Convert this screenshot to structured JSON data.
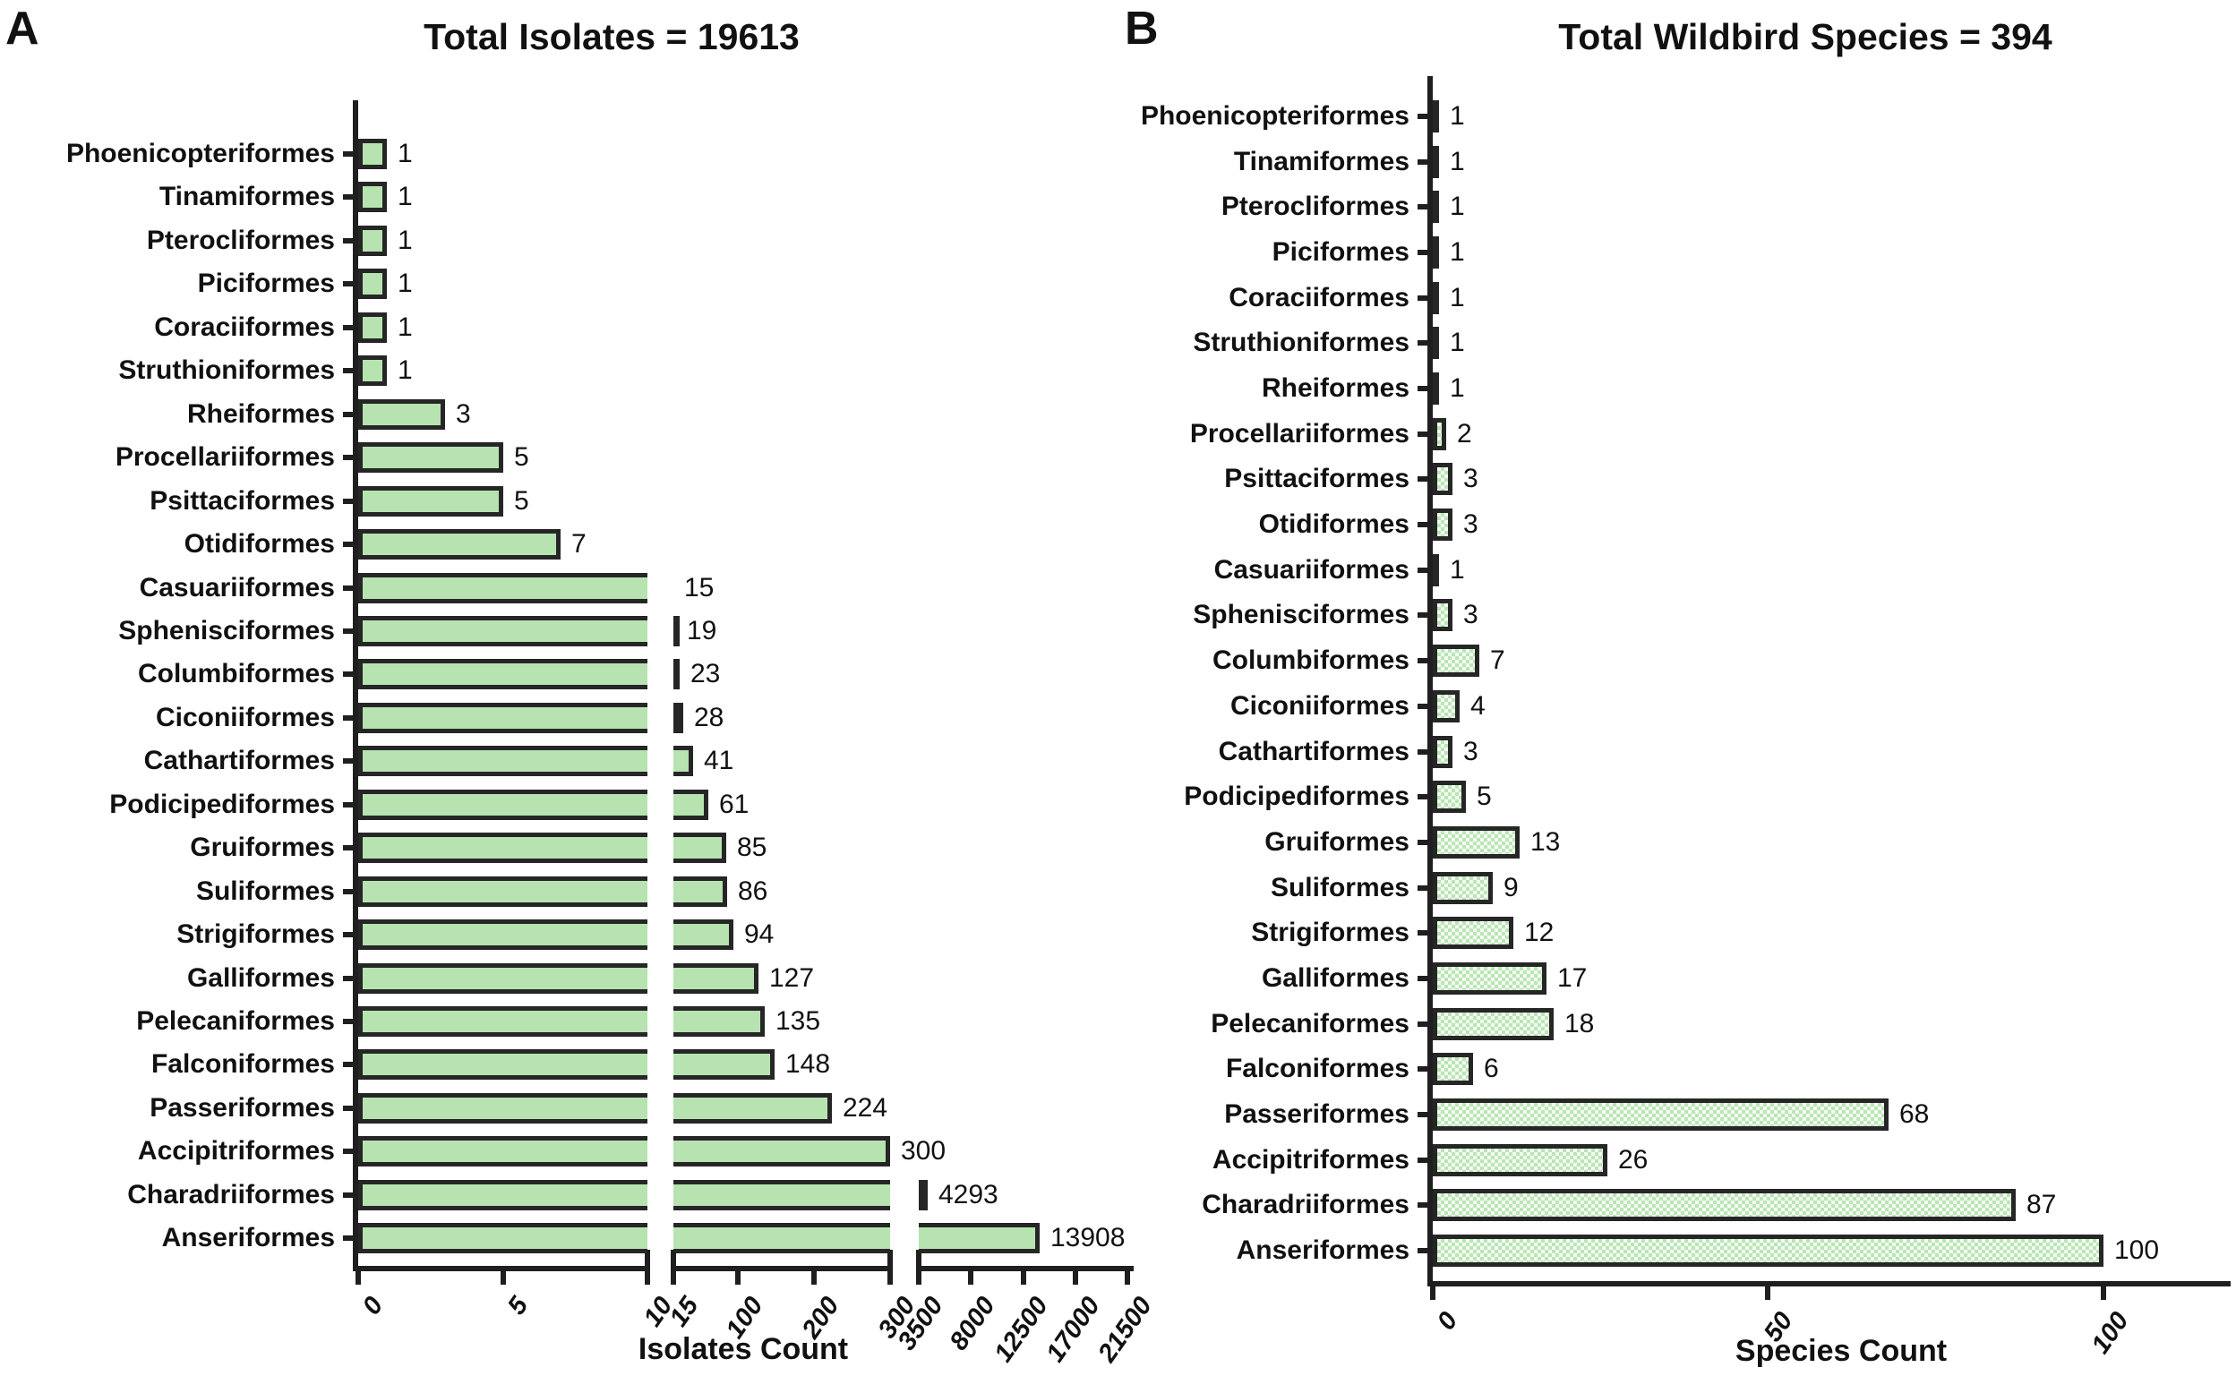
{
  "figure_background": "#ffffff",
  "colors": {
    "bar_fill_solid": "#b6e3b0",
    "bar_fill_dotted_base": "#f4fbf2",
    "bar_fill_dotted_dot": "#b9e6b4",
    "bar_border": "#262626",
    "axis": "#1f1f1f",
    "text": "#111111"
  },
  "chart_data": [
    {
      "type": "bar",
      "orientation": "horizontal",
      "panel_label": "A",
      "title": "Total Isolates = 19613",
      "xlabel": "Isolates Count",
      "bar_style": "solid",
      "grid": false,
      "legend": false,
      "categories": [
        "Phoenicopteriformes",
        "Tinamiformes",
        "Pterocliformes",
        "Piciformes",
        "Coraciiformes",
        "Struthioniformes",
        "Rheiformes",
        "Procellariiformes",
        "Psittaciformes",
        "Otidiformes",
        "Casuariiformes",
        "Sphenisciformes",
        "Columbiformes",
        "Ciconiiformes",
        "Cathartiformes",
        "Podicipediformes",
        "Gruiformes",
        "Suliformes",
        "Strigiformes",
        "Galliformes",
        "Pelecaniformes",
        "Falconiformes",
        "Passeriformes",
        "Accipitriformes",
        "Charadriiformes",
        "Anseriformes"
      ],
      "values": [
        1,
        1,
        1,
        1,
        1,
        1,
        3,
        5,
        5,
        7,
        15,
        19,
        23,
        28,
        41,
        61,
        85,
        86,
        94,
        127,
        135,
        148,
        224,
        300,
        4293,
        13908
      ],
      "axis_segments": [
        {
          "min": 0,
          "max": 10,
          "ticks": [
            0,
            5,
            10
          ]
        },
        {
          "min": 15,
          "max": 300,
          "ticks": [
            15,
            100,
            200,
            300
          ]
        },
        {
          "min": 3500,
          "max": 21500,
          "ticks": [
            3500,
            8000,
            12500,
            17000,
            21500
          ]
        }
      ]
    },
    {
      "type": "bar",
      "orientation": "horizontal",
      "panel_label": "B",
      "title": "Total Wildbird Species = 394",
      "xlabel": "Species Count",
      "bar_style": "dotted",
      "grid": false,
      "legend": false,
      "categories": [
        "Phoenicopteriformes",
        "Tinamiformes",
        "Pterocliformes",
        "Piciformes",
        "Coraciiformes",
        "Struthioniformes",
        "Rheiformes",
        "Procellariiformes",
        "Psittaciformes",
        "Otidiformes",
        "Casuariiformes",
        "Sphenisciformes",
        "Columbiformes",
        "Ciconiiformes",
        "Cathartiformes",
        "Podicipediformes",
        "Gruiformes",
        "Suliformes",
        "Strigiformes",
        "Galliformes",
        "Pelecaniformes",
        "Falconiformes",
        "Passeriformes",
        "Accipitriformes",
        "Charadriiformes",
        "Anseriformes"
      ],
      "values": [
        1,
        1,
        1,
        1,
        1,
        1,
        1,
        2,
        3,
        3,
        1,
        3,
        7,
        4,
        3,
        5,
        13,
        9,
        12,
        17,
        18,
        6,
        68,
        26,
        87,
        100
      ],
      "axis_segments": [
        {
          "min": 0,
          "max": 119,
          "ticks": [
            0,
            50,
            100
          ]
        }
      ]
    }
  ]
}
